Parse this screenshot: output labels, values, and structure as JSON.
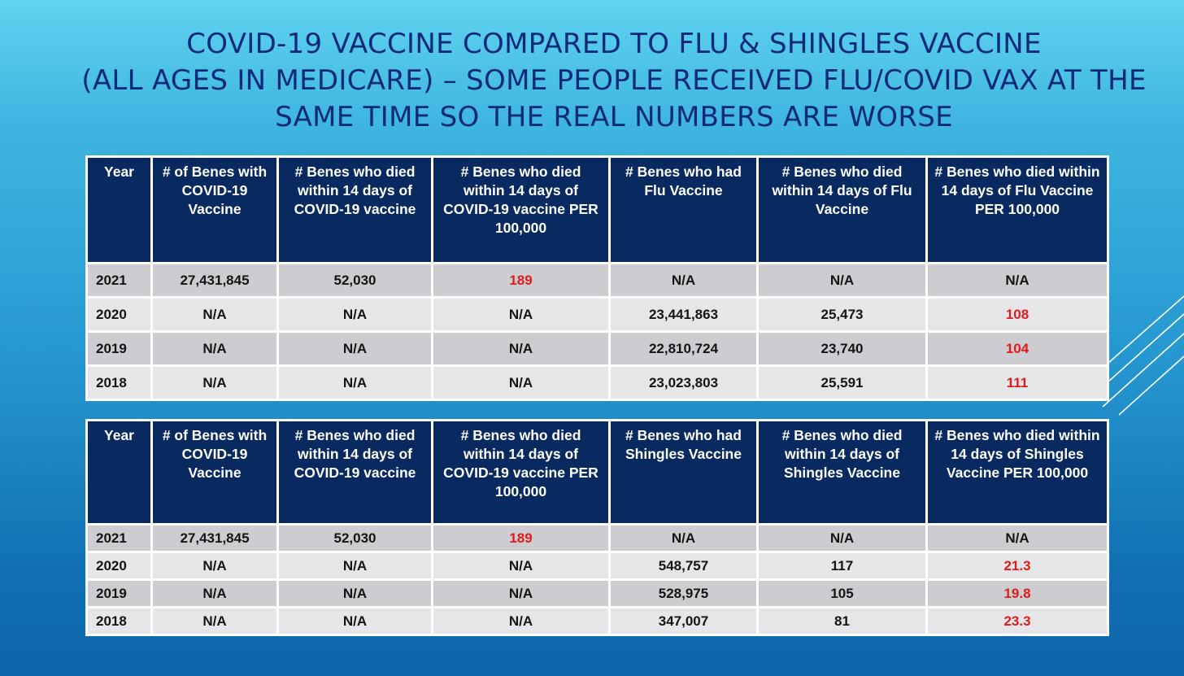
{
  "title": {
    "line1": "COVID-19 VACCINE COMPARED TO FLU & SHINGLES VACCINE",
    "line2": "(ALL AGES IN MEDICARE) – SOME PEOPLE RECEIVED FLU/COVID VAX AT THE",
    "line3": "SAME TIME SO THE REAL NUMBERS ARE WORSE"
  },
  "flu_table": {
    "headers": [
      "Year",
      "# of Benes with COVID-19 Vaccine",
      "# Benes who died within 14 days of COVID-19 vaccine",
      "# Benes who died within 14 days of COVID-19 vaccine PER 100,000",
      "# Benes who had Flu Vaccine",
      "# Benes who died within 14 days of Flu Vaccine",
      "# Benes who died within 14 days of Flu Vaccine PER 100,000"
    ],
    "rows": [
      [
        "2021",
        "27,431,845",
        "52,030",
        "189",
        "N/A",
        "N/A",
        "N/A"
      ],
      [
        "2020",
        "N/A",
        "N/A",
        "N/A",
        "23,441,863",
        "25,473",
        "108"
      ],
      [
        "2019",
        "N/A",
        "N/A",
        "N/A",
        "22,810,724",
        "23,740",
        "104"
      ],
      [
        "2018",
        "N/A",
        "N/A",
        "N/A",
        "23,023,803",
        "25,591",
        "111"
      ]
    ]
  },
  "shingles_table": {
    "headers": [
      "Year",
      "# of Benes with COVID-19 Vaccine",
      "# Benes who died within 14 days of COVID-19 vaccine",
      "# Benes who died within 14 days of COVID-19 vaccine PER 100,000",
      "# Benes who had Shingles Vaccine",
      "# Benes who died within 14 days of Shingles Vaccine",
      "# Benes who died within 14 days of Shingles Vaccine PER 100,000"
    ],
    "rows": [
      [
        "2021",
        "27,431,845",
        "52,030",
        "189",
        "N/A",
        "N/A",
        "N/A"
      ],
      [
        "2020",
        "N/A",
        "N/A",
        "N/A",
        "548,757",
        "117",
        "21.3"
      ],
      [
        "2019",
        "N/A",
        "N/A",
        "N/A",
        "528,975",
        "105",
        "19.8"
      ],
      [
        "2018",
        "N/A",
        "N/A",
        "N/A",
        "347,007",
        "81",
        "23.3"
      ]
    ]
  },
  "colors": {
    "header_bg": "#082a60",
    "highlight_red": "#e01b1b",
    "title": "#0d2a7a"
  }
}
